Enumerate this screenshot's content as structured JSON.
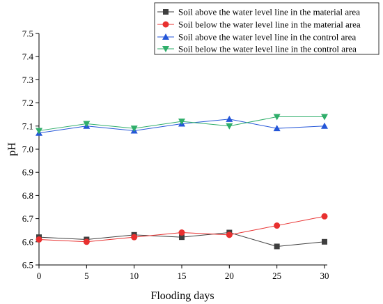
{
  "chart_data": {
    "type": "line",
    "title": "",
    "xlabel": "Flooding days",
    "ylabel": "pH",
    "x": [
      0,
      5,
      10,
      15,
      20,
      25,
      30
    ],
    "xlim": [
      0,
      30
    ],
    "ylim": [
      6.5,
      7.5
    ],
    "x_ticks": [
      "0",
      "5",
      "10",
      "15",
      "20",
      "25",
      "30"
    ],
    "y_ticks": [
      "6.5",
      "6.6",
      "6.7",
      "6.8",
      "6.9",
      "7.0",
      "7.1",
      "7.2",
      "7.3",
      "7.4",
      "7.5"
    ],
    "grid": false,
    "legend_position": "top-right",
    "series": [
      {
        "name": "Soil above the water level line in the material area",
        "values": [
          6.62,
          6.61,
          6.63,
          6.62,
          6.64,
          6.58,
          6.6
        ],
        "color": "#3f3f3f",
        "marker": "square"
      },
      {
        "name": "Soil below the water level line in the material area",
        "values": [
          6.61,
          6.6,
          6.62,
          6.64,
          6.63,
          6.67,
          6.71
        ],
        "color": "#e8302f",
        "marker": "circle"
      },
      {
        "name": "Soil above the water level line in the control area",
        "values": [
          7.07,
          7.1,
          7.08,
          7.11,
          7.13,
          7.09,
          7.1
        ],
        "color": "#2456d8",
        "marker": "triangle-up"
      },
      {
        "name": "Soil below the water level line in the control area",
        "values": [
          7.08,
          7.11,
          7.09,
          7.12,
          7.1,
          7.14,
          7.14
        ],
        "color": "#2fae6a",
        "marker": "triangle-down"
      }
    ]
  }
}
